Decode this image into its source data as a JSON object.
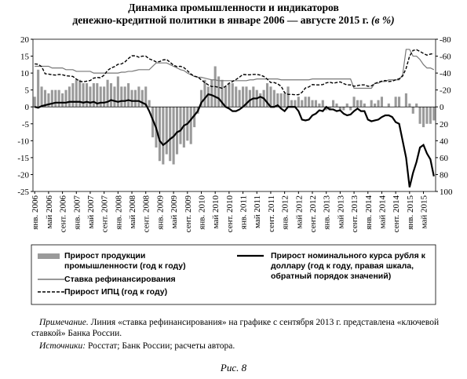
{
  "chart_data": {
    "type": "combo",
    "title": "Динамика промышленности и индикаторов",
    "subtitle": "денежно-кредитной политики в январе 2006 — августе 2015 г.",
    "title_unit": "(в %)",
    "categories": [
      "янв. 2006",
      null,
      null,
      null,
      "май 2006",
      null,
      null,
      null,
      "сент. 2006",
      null,
      null,
      null,
      "янв. 2007",
      null,
      null,
      null,
      "май 2007",
      null,
      null,
      null,
      "сент. 2007",
      null,
      null,
      null,
      "янв. 2008",
      null,
      null,
      null,
      "май 2008",
      null,
      null,
      null,
      "сент. 2008",
      null,
      null,
      null,
      "янв. 2009",
      null,
      null,
      null,
      "май 2009",
      null,
      null,
      null,
      "сент. 2009",
      null,
      null,
      null,
      "янв. 2010",
      null,
      null,
      null,
      "май 2010",
      null,
      null,
      null,
      "сент. 2010",
      null,
      null,
      null,
      "янв. 2011",
      null,
      null,
      null,
      "май 2011",
      null,
      null,
      null,
      "сент. 2011",
      null,
      null,
      null,
      "янв. 2012",
      null,
      null,
      null,
      "май 2012",
      null,
      null,
      null,
      "сент. 2012",
      null,
      null,
      null,
      "янв. 2013",
      null,
      null,
      null,
      "май 2013",
      null,
      null,
      null,
      "сент. 2013",
      null,
      null,
      null,
      "янв. 2014",
      null,
      null,
      null,
      "май 2014",
      null,
      null,
      null,
      "сент. 2014",
      null,
      null,
      null,
      "янв. 2015",
      null,
      null,
      null,
      "май 2015",
      null,
      null,
      null
    ],
    "ylim": [
      -25,
      20
    ],
    "yticks": [
      -25,
      -20,
      -15,
      -10,
      -5,
      0,
      5,
      10,
      15,
      20
    ],
    "y2lim": [
      100,
      -80
    ],
    "y2ticks": [
      -80,
      -60,
      -40,
      -20,
      0,
      20,
      40,
      60,
      80,
      100
    ],
    "series": [
      {
        "name": "Прирост продукции промышленности (год к году)",
        "type": "bar",
        "color": "#9a9a9a",
        "values": [
          3,
          11,
          6,
          5,
          4,
          5,
          5,
          5,
          4,
          5,
          6,
          7,
          8,
          8,
          7,
          7,
          6,
          7,
          7,
          6,
          6,
          8,
          7,
          6,
          9,
          6,
          6,
          7,
          5,
          5,
          6,
          5,
          6,
          2,
          -9,
          -12,
          -16,
          -17,
          -14,
          -16,
          -17,
          -14,
          -11,
          -12,
          -10,
          -11,
          -6,
          -2,
          5,
          8,
          6,
          8,
          12,
          9,
          8,
          6,
          7,
          7,
          6,
          5,
          6,
          6,
          5,
          6,
          5,
          4,
          5,
          7,
          6,
          5,
          4,
          4,
          4,
          6,
          2,
          2,
          3,
          2,
          3,
          3,
          2,
          2,
          1,
          2,
          -1,
          -1,
          2,
          1,
          -1,
          -1,
          1,
          -1,
          3,
          2,
          2,
          1,
          0,
          2,
          1,
          2,
          3,
          0,
          1,
          0,
          3,
          3,
          0,
          4,
          1,
          -2,
          1,
          -5,
          -6,
          -5,
          -5,
          -4
        ]
      },
      {
        "name": "Ставка рефинансирования",
        "type": "line",
        "color": "#777777",
        "values": [
          12,
          12,
          12,
          12,
          12,
          11.5,
          11.5,
          11.5,
          11.5,
          11,
          11,
          11,
          10.5,
          10.5,
          10.5,
          10.5,
          10.5,
          10,
          10,
          10,
          10,
          10,
          10,
          10,
          10,
          10.25,
          10.25,
          10.5,
          10.5,
          10.75,
          11,
          11,
          11,
          11,
          12,
          13,
          13,
          13,
          13,
          12.5,
          12,
          11.5,
          11,
          10.75,
          10,
          9.5,
          9,
          8.75,
          8.75,
          8.5,
          8.25,
          8,
          8,
          7.75,
          7.75,
          7.75,
          7.75,
          7.75,
          7.75,
          7.75,
          7.75,
          7.75,
          8,
          8,
          8.25,
          8.25,
          8.25,
          8.25,
          8.25,
          8.25,
          8.25,
          8,
          8,
          8,
          8,
          8,
          8,
          8,
          8,
          8,
          8.25,
          8.25,
          8.25,
          8.25,
          8.25,
          8.25,
          8.25,
          8.25,
          8.25,
          8.25,
          8.25,
          8.25,
          5.5,
          5.5,
          5.5,
          5.5,
          5.5,
          5.5,
          7,
          7,
          7.5,
          7.5,
          8,
          8,
          8,
          8,
          9.5,
          17,
          17,
          15,
          15,
          14,
          12.5,
          11.5,
          11.5,
          11
        ]
      },
      {
        "name": "Прирост ИПЦ (год к году)",
        "type": "line",
        "dash": true,
        "color": "#000000",
        "values": [
          12.7,
          12.6,
          11.9,
          9.8,
          9.7,
          9.5,
          9.4,
          9.6,
          9.5,
          9.2,
          9.1,
          9.0,
          8.2,
          7.6,
          7.4,
          7.6,
          7.8,
          8.5,
          8.7,
          8.6,
          9.4,
          10.8,
          11.5,
          11.9,
          12.6,
          12.7,
          13.3,
          14.3,
          15.1,
          15.1,
          14.7,
          15.0,
          15.0,
          14.2,
          13.8,
          13.3,
          13.4,
          13.9,
          14.0,
          13.2,
          12.3,
          11.9,
          12.0,
          11.6,
          10.7,
          9.7,
          9.1,
          8.8,
          8.0,
          7.2,
          6.5,
          6.0,
          6.0,
          5.8,
          5.5,
          6.1,
          7.0,
          7.5,
          8.1,
          8.8,
          9.6,
          9.5,
          9.5,
          9.6,
          9.6,
          9.4,
          9.0,
          8.2,
          7.2,
          7.2,
          6.8,
          6.1,
          4.2,
          3.7,
          3.7,
          3.6,
          3.6,
          4.3,
          5.6,
          5.9,
          6.6,
          6.5,
          6.5,
          6.6,
          7.1,
          7.3,
          7.0,
          7.2,
          7.4,
          6.9,
          6.5,
          6.5,
          6.1,
          6.3,
          6.5,
          6.5,
          6.1,
          6.2,
          6.9,
          7.3,
          7.6,
          7.8,
          7.5,
          7.6,
          8.0,
          8.3,
          9.1,
          11.4,
          15.0,
          16.7,
          16.9,
          16.4,
          15.8,
          15.3,
          15.6,
          15.8
        ]
      },
      {
        "name": "Прирост номинального курса рубля к доллару (год к году, правая шкала, обратный порядок значений)",
        "type": "line",
        "axis": "y2",
        "color": "#000000",
        "values": [
          0,
          1,
          -1,
          -2,
          -3,
          -4,
          -5,
          -5,
          -5,
          -5,
          -6,
          -6,
          -6,
          -6,
          -5,
          -6,
          -5,
          -6,
          -4,
          -5,
          -5,
          -6,
          -8,
          -7,
          -6,
          -7,
          -7,
          -8,
          -7,
          -7,
          -7,
          -5,
          -3,
          5,
          15,
          25,
          40,
          45,
          42,
          38,
          35,
          30,
          28,
          22,
          20,
          15,
          10,
          5,
          -5,
          -10,
          -15,
          -14,
          -12,
          -10,
          -5,
          0,
          2,
          5,
          5,
          3,
          0,
          -4,
          -8,
          -10,
          -10,
          -12,
          -10,
          -5,
          0,
          0,
          -2,
          2,
          5,
          0,
          0,
          0,
          5,
          15,
          16,
          15,
          10,
          8,
          4,
          5,
          0,
          3,
          3,
          5,
          4,
          8,
          10,
          9,
          5,
          2,
          5,
          5,
          15,
          17,
          16,
          15,
          12,
          10,
          10,
          12,
          18,
          20,
          40,
          60,
          95,
          78,
          65,
          48,
          45,
          55,
          62,
          82
        ]
      }
    ],
    "note_label": "Примечание.",
    "note": "Линия «ставка рефинансирования» на графике с сентября 2013 г. представлена «ключевой ставкой» Банка России.",
    "sources_label": "Источники:",
    "sources": "Росстат; Банк России; расчеты автора.",
    "figure": "Рис. 8"
  }
}
